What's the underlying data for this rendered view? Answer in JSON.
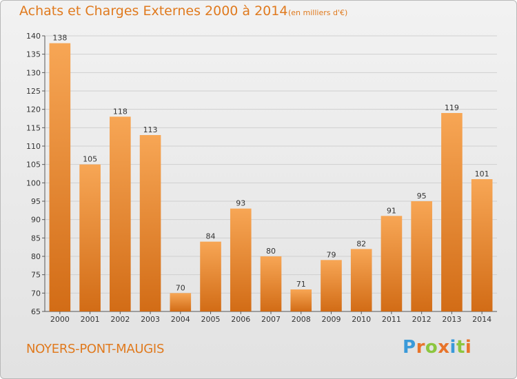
{
  "title": "Achats et Charges Externes 2000 à 2014",
  "subtitle": "(en milliers d'€)",
  "place": "NOYERS-PONT-MAUGIS",
  "brand": {
    "letters": [
      "P",
      "r",
      "o",
      "x",
      "i",
      "t",
      "i"
    ],
    "colors": [
      "#3a9ad9",
      "#e8742a",
      "#8cc63f",
      "#e8742a",
      "#3a9ad9",
      "#8cc63f",
      "#e8742a"
    ]
  },
  "colors": {
    "accent": "#e07a1e",
    "bar_top": "#f7a655",
    "bar_bottom": "#d26c16",
    "grid": "#cfcfcf"
  },
  "chart_data": {
    "type": "bar",
    "categories": [
      "2000",
      "2001",
      "2002",
      "2003",
      "2004",
      "2005",
      "2006",
      "2007",
      "2008",
      "2009",
      "2010",
      "2011",
      "2012",
      "2013",
      "2014"
    ],
    "values": [
      138,
      105,
      118,
      113,
      70,
      84,
      93,
      80,
      71,
      79,
      82,
      91,
      95,
      119,
      101
    ],
    "ylim": [
      65,
      140
    ],
    "yticks": [
      65,
      70,
      75,
      80,
      85,
      90,
      95,
      100,
      105,
      110,
      115,
      120,
      125,
      130,
      135,
      140
    ],
    "grid": true
  }
}
